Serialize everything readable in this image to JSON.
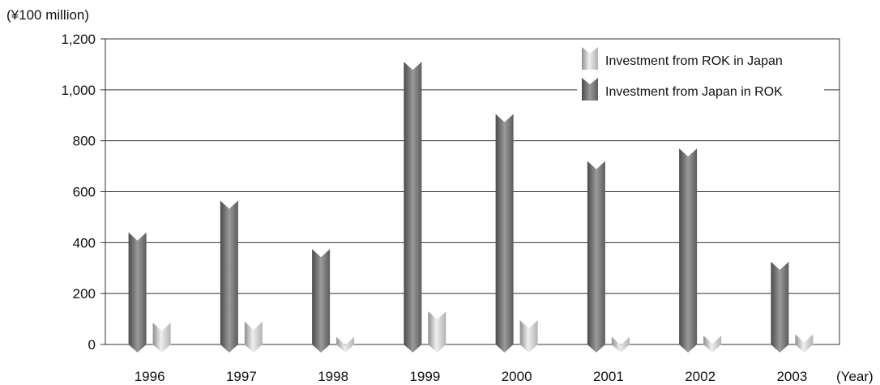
{
  "chart_data": {
    "type": "bar",
    "ylabel": "(¥100 million)",
    "xlabel": "(Year)",
    "ylim": [
      0,
      1200
    ],
    "yticks": [
      0,
      200,
      400,
      600,
      800,
      1000,
      1200
    ],
    "ytick_labels": [
      "0",
      "200",
      "400",
      "600",
      "800",
      "1,000",
      "1,200"
    ],
    "grid": true,
    "legend_position": "top-right",
    "categories": [
      "1996",
      "1997",
      "1998",
      "1999",
      "2000",
      "2001",
      "2002",
      "2003"
    ],
    "series": [
      {
        "name": "Investment from ROK in Japan",
        "color": "#b8b8b8",
        "values": [
          85,
          90,
          30,
          130,
          95,
          30,
          35,
          40
        ]
      },
      {
        "name": "Investment from Japan in ROK",
        "color": "#6e6e6e",
        "values": [
          440,
          565,
          375,
          1110,
          905,
          720,
          770,
          325
        ]
      }
    ]
  }
}
